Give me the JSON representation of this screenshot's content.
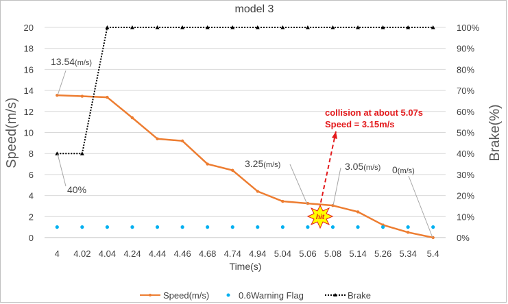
{
  "chart_data": {
    "type": "line",
    "title": "model 3",
    "xlabel": "Time(s)",
    "ylabel": "Speed(m/s)",
    "y2label": "Brake(%)",
    "categories": [
      "4",
      "4.02",
      "4.04",
      "4.24",
      "4.44",
      "4.46",
      "4.68",
      "4.74",
      "4.94",
      "5.04",
      "5.06",
      "5.08",
      "5.14",
      "5.26",
      "5.34",
      "5.4"
    ],
    "ylim": [
      0,
      20
    ],
    "yticks": [
      "0",
      "2",
      "4",
      "6",
      "8",
      "10",
      "12",
      "14",
      "16",
      "18",
      "20"
    ],
    "y2lim": [
      0,
      100
    ],
    "y2ticks": [
      "0%",
      "10%",
      "20%",
      "30%",
      "40%",
      "50%",
      "60%",
      "70%",
      "80%",
      "90%",
      "100%"
    ],
    "gridlines": true,
    "legend_position": "bottom",
    "series": [
      {
        "name": "Speed(m/s)",
        "axis": "left",
        "color": "#ed7d31",
        "values": [
          13.54,
          13.45,
          13.35,
          11.4,
          9.4,
          9.2,
          7.0,
          6.4,
          4.4,
          3.45,
          3.25,
          3.05,
          2.45,
          1.2,
          0.5,
          0
        ]
      },
      {
        "name": "0.6Warning Flag",
        "axis": "left",
        "color": "#00b0f0",
        "values": [
          1,
          1,
          1,
          1,
          1,
          1,
          1,
          1,
          1,
          1,
          1,
          1,
          1,
          1,
          1,
          1
        ]
      },
      {
        "name": "Brake",
        "axis": "right",
        "color": "#000000",
        "values": [
          40,
          40,
          100,
          100,
          100,
          100,
          100,
          100,
          100,
          100,
          100,
          100,
          100,
          100,
          100,
          100
        ]
      }
    ],
    "annotations": {
      "start_speed": {
        "value": "13.54",
        "unit": "(m/s)"
      },
      "start_brake": {
        "value": "40%"
      },
      "speed_506": {
        "value": "3.25",
        "unit": "(m/s)"
      },
      "speed_508": {
        "value": "3.05",
        "unit": "(m/s)"
      },
      "speed_end": {
        "value": "0",
        "unit": "(m/s)"
      },
      "collision_line1": "collision at about 5.07s",
      "collision_line2": "Speed = 3.15m/s",
      "hit_label": "hit"
    }
  }
}
